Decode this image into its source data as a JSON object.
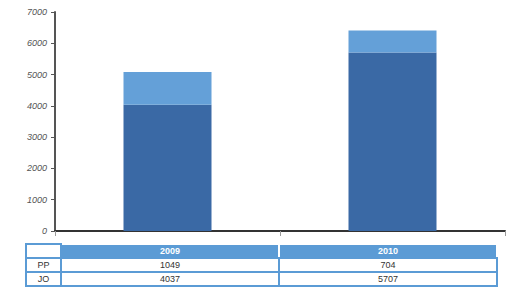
{
  "chart_data": {
    "type": "bar",
    "categories": [
      "2009",
      "2010"
    ],
    "series": [
      {
        "name": "PP",
        "color": "#64a0d8",
        "values": [
          1049,
          704
        ]
      },
      {
        "name": "JO",
        "color": "#3a69a5",
        "values": [
          4037,
          5707
        ]
      }
    ],
    "stacked": true,
    "ylim": [
      0,
      7000
    ],
    "yticks": [
      0,
      1000,
      2000,
      3000,
      4000,
      5000,
      6000,
      7000
    ],
    "grid": false,
    "tick_labels": "y"
  }
}
